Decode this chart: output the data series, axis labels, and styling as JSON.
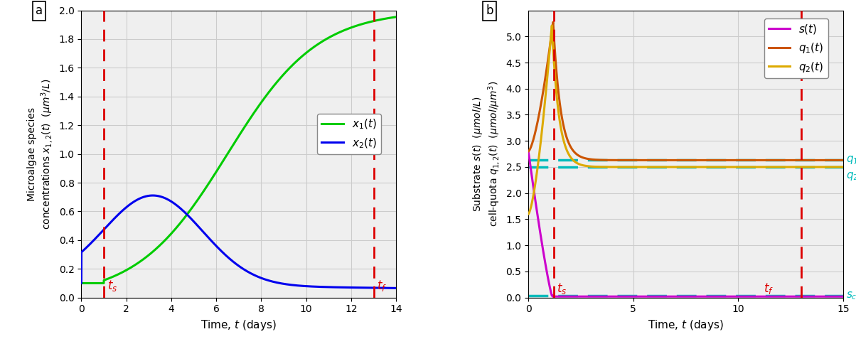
{
  "panel_a": {
    "ts": 1.0,
    "tf": 13.0,
    "x1_color": "#00cc00",
    "x2_color": "#0000ee",
    "ylim": [
      0,
      2.0
    ],
    "xlim": [
      0,
      14
    ],
    "yticks": [
      0,
      0.2,
      0.4,
      0.6,
      0.8,
      1.0,
      1.2,
      1.4,
      1.6,
      1.8,
      2.0
    ],
    "xticks": [
      0,
      2,
      4,
      6,
      8,
      10,
      12,
      14
    ],
    "ylabel": "Microalgae species\nconcentrations $x_{1,2}(t)$  ($\\mu m^3/L$)",
    "xlabel": "Time, $t$ (days)"
  },
  "panel_b": {
    "ts": 1.2,
    "tf": 13.0,
    "s_color": "#cc00cc",
    "q1_color": "#cc5500",
    "q2_color": "#ddaa00",
    "sc_color": "#00bbbb",
    "q1c_val": 2.63,
    "q2c_val": 2.5,
    "sc_val": 0.04,
    "s_init": 2.8,
    "q1_init": 2.8,
    "q1_peak": 5.28,
    "q1_peak_t": 1.18,
    "q2_init": 1.6,
    "q2_peak": 5.22,
    "q2_peak_t": 1.12,
    "ylim": [
      0,
      5.5
    ],
    "xlim": [
      0,
      15
    ],
    "yticks": [
      0,
      0.5,
      1.0,
      1.5,
      2.0,
      2.5,
      3.0,
      3.5,
      4.0,
      4.5,
      5.0
    ],
    "xticks": [
      0,
      5,
      10,
      15
    ],
    "ylabel": "Substrate $s(t)$  ($\\mu mol/L$)\ncell-quota $q_{1,2}(t)$  ($\\mu mol/\\mu m^3$)",
    "xlabel": "Time, $t$ (days)"
  },
  "red_color": "#dd0000",
  "bg_color": "#efefef",
  "grid_color": "#cccccc",
  "lw": 2.2
}
